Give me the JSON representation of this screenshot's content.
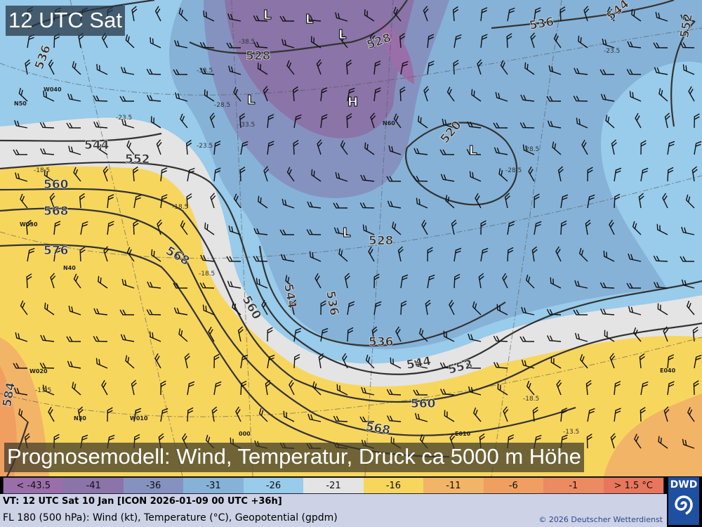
{
  "header": {
    "title": "12 UTC Sat"
  },
  "banner": {
    "text": "Prognosemodell: Wind, Temperatur, Druck ca 5000 m Höhe"
  },
  "legend": {
    "items": [
      {
        "label": "< -43.5",
        "color": "#9a6ea9"
      },
      {
        "label": "-41",
        "color": "#8a74a8"
      },
      {
        "label": "-36",
        "color": "#8592c0"
      },
      {
        "label": "-31",
        "color": "#86b2d7"
      },
      {
        "label": "-26",
        "color": "#99cbea"
      },
      {
        "label": "-21",
        "color": "#e4e4e4"
      },
      {
        "label": "-16",
        "color": "#f7d65e"
      },
      {
        "label": "-11",
        "color": "#f2b466"
      },
      {
        "label": "-6",
        "color": "#f09f60"
      },
      {
        "label": "-1",
        "color": "#ec8a62"
      },
      {
        "label": "> 1.5 °C",
        "color": "#e8765c"
      }
    ]
  },
  "info": {
    "valid_time": "VT: 12 UTC Sat  10 Jan [ICON 2026-01-09 00 UTC +36h]",
    "description": "FL 180 (500 hPa): Wind (kt), Temperature (°C), Geopotential (gpdm)",
    "copyright": "© 2026 Deutscher Wetterdienst"
  },
  "logo": {
    "text": "DWD"
  },
  "map": {
    "contour_labels": [
      "536",
      "528",
      "528",
      "536",
      "544",
      "552",
      "560",
      "568",
      "576",
      "568",
      "544",
      "536",
      "560",
      "528",
      "536",
      "544",
      "552",
      "560",
      "568",
      "520",
      "584",
      "544",
      "552"
    ],
    "pressure_centers": [
      "L",
      "L",
      "L",
      "L",
      "H",
      "L",
      "L"
    ],
    "temperature_labels": [
      "-33.5",
      "-38.5",
      "-28.5",
      "-23.5",
      "-23.5",
      "-18.5",
      "-18.5",
      "-18.5",
      "-13.5",
      "-28.5",
      "-28.5",
      "-23.5",
      "-18.5",
      "-13.5",
      "-33.5"
    ],
    "grid_labels": [
      "W040",
      "N50",
      "W030",
      "N40",
      "W020",
      "W010",
      "N30",
      "000",
      "E010",
      "E040",
      "N60"
    ]
  }
}
